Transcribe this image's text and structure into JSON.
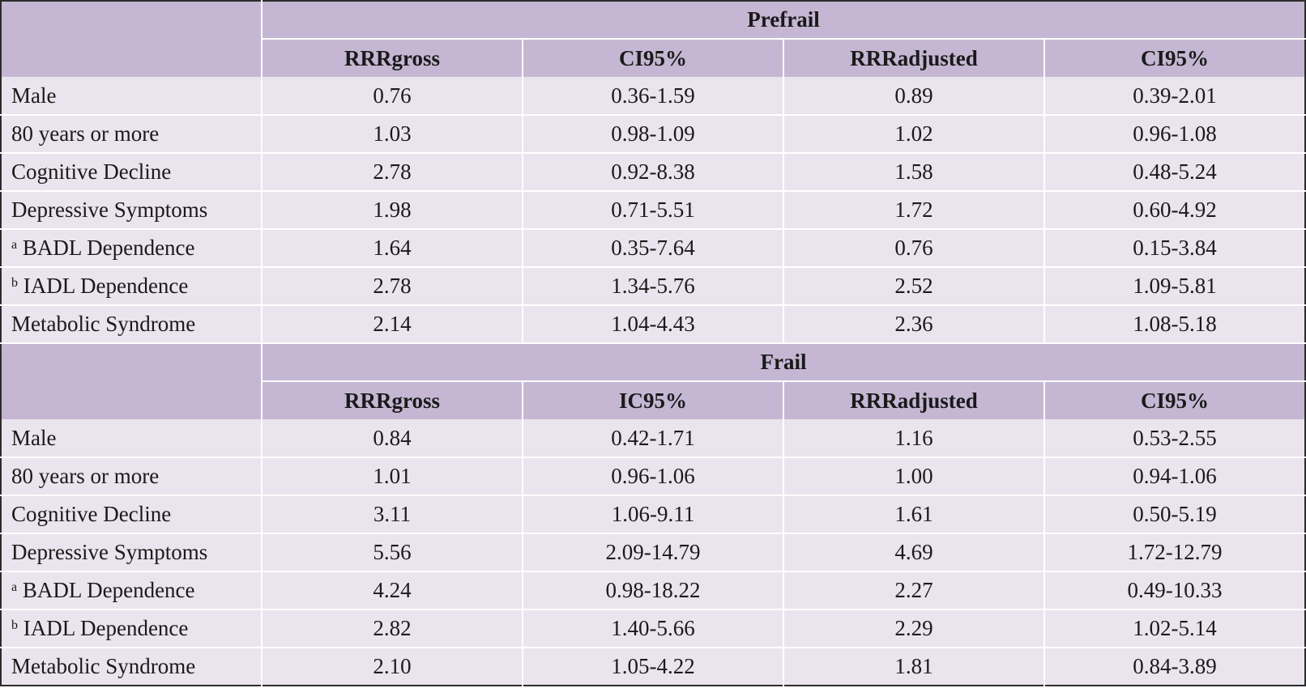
{
  "sections": [
    {
      "title": "Prefrail",
      "columns": [
        "RRRgross",
        "CI95%",
        "RRRadjusted",
        "CI95%"
      ],
      "rows": [
        {
          "sup": "",
          "label": "Male",
          "values": [
            "0.76",
            "0.36-1.59",
            "0.89",
            "0.39-2.01"
          ]
        },
        {
          "sup": "",
          "label": "80 years or more",
          "values": [
            "1.03",
            "0.98-1.09",
            "1.02",
            "0.96-1.08"
          ]
        },
        {
          "sup": "",
          "label": "Cognitive Decline",
          "values": [
            "2.78",
            "0.92-8.38",
            "1.58",
            "0.48-5.24"
          ]
        },
        {
          "sup": "",
          "label": "Depressive Symptoms",
          "values": [
            "1.98",
            "0.71-5.51",
            "1.72",
            "0.60-4.92"
          ]
        },
        {
          "sup": "a",
          "label": "BADL Dependence",
          "values": [
            "1.64",
            "0.35-7.64",
            "0.76",
            "0.15-3.84"
          ]
        },
        {
          "sup": "b",
          "label": "IADL Dependence",
          "values": [
            "2.78",
            "1.34-5.76",
            "2.52",
            "1.09-5.81"
          ]
        },
        {
          "sup": "",
          "label": "Metabolic Syndrome",
          "values": [
            "2.14",
            "1.04-4.43",
            "2.36",
            "1.08-5.18"
          ]
        }
      ]
    },
    {
      "title": "Frail",
      "columns": [
        "RRRgross",
        "IC95%",
        "RRRadjusted",
        "CI95%"
      ],
      "rows": [
        {
          "sup": "",
          "label": "Male",
          "values": [
            "0.84",
            "0.42-1.71",
            "1.16",
            "0.53-2.55"
          ]
        },
        {
          "sup": "",
          "label": "80 years or more",
          "values": [
            "1.01",
            "0.96-1.06",
            "1.00",
            "0.94-1.06"
          ]
        },
        {
          "sup": "",
          "label": "Cognitive Decline",
          "values": [
            "3.11",
            "1.06-9.11",
            "1.61",
            "0.50-5.19"
          ]
        },
        {
          "sup": "",
          "label": "Depressive Symptoms",
          "values": [
            "5.56",
            "2.09-14.79",
            "4.69",
            "1.72-12.79"
          ]
        },
        {
          "sup": "a",
          "label": "BADL Dependence",
          "values": [
            "4.24",
            "0.98-18.22",
            "2.27",
            "0.49-10.33"
          ]
        },
        {
          "sup": "b",
          "label": "IADL Dependence",
          "values": [
            "2.82",
            "1.40-5.66",
            "2.29",
            "1.02-5.14"
          ]
        },
        {
          "sup": "",
          "label": "Metabolic Syndrome",
          "values": [
            "2.10",
            "1.05-4.22",
            "1.81",
            "0.84-3.89"
          ]
        }
      ]
    }
  ],
  "colors": {
    "header_bg": "#c5b7d3",
    "row_bg": "#e9e4ed",
    "separator": "#ffffff",
    "border": "#2b2b2b"
  }
}
